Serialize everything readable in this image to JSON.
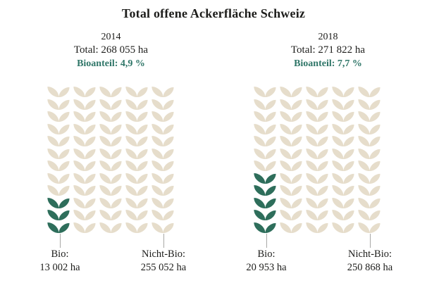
{
  "title": "Total offene Ackerfläche Schweiz",
  "colors": {
    "background": "#ffffff",
    "bio_green": "#2e6e5b",
    "non_bio_beige": "#e6ddcb",
    "accent_text_teal": "#2f7668",
    "text_dark": "#1d1d1b",
    "leader_line_gray": "#a8a8a6"
  },
  "chart_data": {
    "type": "pictogram",
    "unit_icon": "leaf-pair-icon",
    "grid": {
      "rows": 12,
      "cols": 5,
      "total_units_per_panel": 60
    },
    "legend_note": "green leaf units = Bio share, beige leaf units = Nicht-Bio",
    "panels": [
      {
        "year": "2014",
        "total_label": "Total: 268 055 ha",
        "total_ha": 268055,
        "bio_share_label": "Bioanteil: 4,9 %",
        "bio_share_pct": 4.9,
        "bio_units_green": 3,
        "bio_label": "Bio:",
        "bio_value": "13 002 ha",
        "bio_ha": 13002,
        "non_bio_label": "Nicht-Bio:",
        "non_bio_value": "255 052 ha",
        "non_bio_ha": 255052
      },
      {
        "year": "2018",
        "total_label": "Total: 271 822 ha",
        "total_ha": 271822,
        "bio_share_label": "Bioanteil: 7,7 %",
        "bio_share_pct": 7.7,
        "bio_units_green": 5,
        "bio_label": "Bio:",
        "bio_value": "20 953 ha",
        "bio_ha": 20953,
        "non_bio_label": "Nicht-Bio:",
        "non_bio_value": "250 868 ha",
        "non_bio_ha": 250868
      }
    ]
  }
}
